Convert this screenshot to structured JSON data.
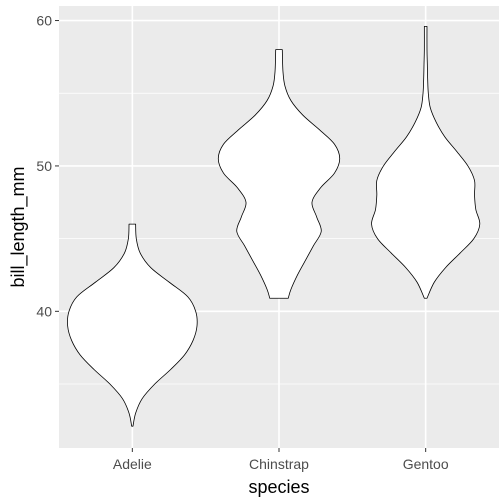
{
  "chart_data": {
    "type": "violin",
    "title": "",
    "xlabel": "species",
    "ylabel": "bill_length_mm",
    "ylim": [
      30.6,
      61.0
    ],
    "yticks": [
      40,
      50,
      60
    ],
    "ytick_labels": [
      "40",
      "50",
      "60"
    ],
    "grid": true,
    "colors": {
      "panel": "#ebebeb",
      "gridline": "#ffffff",
      "violin_fill": "#ffffff",
      "violin_stroke": "#000000",
      "tick_text": "#4d4d4d"
    },
    "categories": [
      "Adelie",
      "Chinstrap",
      "Gentoo"
    ],
    "series": [
      {
        "category": "Adelie",
        "min": 32.1,
        "max": 46.0,
        "profile": [
          [
            32.1,
            0.01
          ],
          [
            33.0,
            0.05
          ],
          [
            34.0,
            0.15
          ],
          [
            35.0,
            0.34
          ],
          [
            36.0,
            0.58
          ],
          [
            37.0,
            0.79
          ],
          [
            38.0,
            0.92
          ],
          [
            39.0,
            0.98
          ],
          [
            40.0,
            0.96
          ],
          [
            41.0,
            0.84
          ],
          [
            42.0,
            0.56
          ],
          [
            43.0,
            0.28
          ],
          [
            44.0,
            0.12
          ],
          [
            45.0,
            0.06
          ],
          [
            46.0,
            0.05
          ]
        ]
      },
      {
        "category": "Chinstrap",
        "min": 40.9,
        "max": 58.0,
        "profile": [
          [
            40.9,
            0.14
          ],
          [
            41.5,
            0.18
          ],
          [
            42.5,
            0.28
          ],
          [
            43.5,
            0.4
          ],
          [
            44.5,
            0.52
          ],
          [
            45.5,
            0.64
          ],
          [
            46.5,
            0.57
          ],
          [
            47.5,
            0.5
          ],
          [
            48.5,
            0.63
          ],
          [
            49.5,
            0.84
          ],
          [
            50.5,
            0.92
          ],
          [
            51.5,
            0.84
          ],
          [
            52.5,
            0.61
          ],
          [
            53.5,
            0.36
          ],
          [
            54.5,
            0.18
          ],
          [
            55.5,
            0.09
          ],
          [
            56.5,
            0.06
          ],
          [
            58.0,
            0.05
          ]
        ]
      },
      {
        "category": "Gentoo",
        "min": 40.9,
        "max": 59.6,
        "profile": [
          [
            40.9,
            0.02
          ],
          [
            42.0,
            0.13
          ],
          [
            43.0,
            0.3
          ],
          [
            44.0,
            0.52
          ],
          [
            45.0,
            0.73
          ],
          [
            46.0,
            0.82
          ],
          [
            47.0,
            0.76
          ],
          [
            48.0,
            0.74
          ],
          [
            49.0,
            0.74
          ],
          [
            50.0,
            0.64
          ],
          [
            51.0,
            0.47
          ],
          [
            52.0,
            0.29
          ],
          [
            53.0,
            0.16
          ],
          [
            54.0,
            0.07
          ],
          [
            55.0,
            0.04
          ],
          [
            56.0,
            0.03
          ],
          [
            57.0,
            0.025
          ],
          [
            58.0,
            0.02
          ],
          [
            59.6,
            0.02
          ]
        ]
      }
    ]
  }
}
